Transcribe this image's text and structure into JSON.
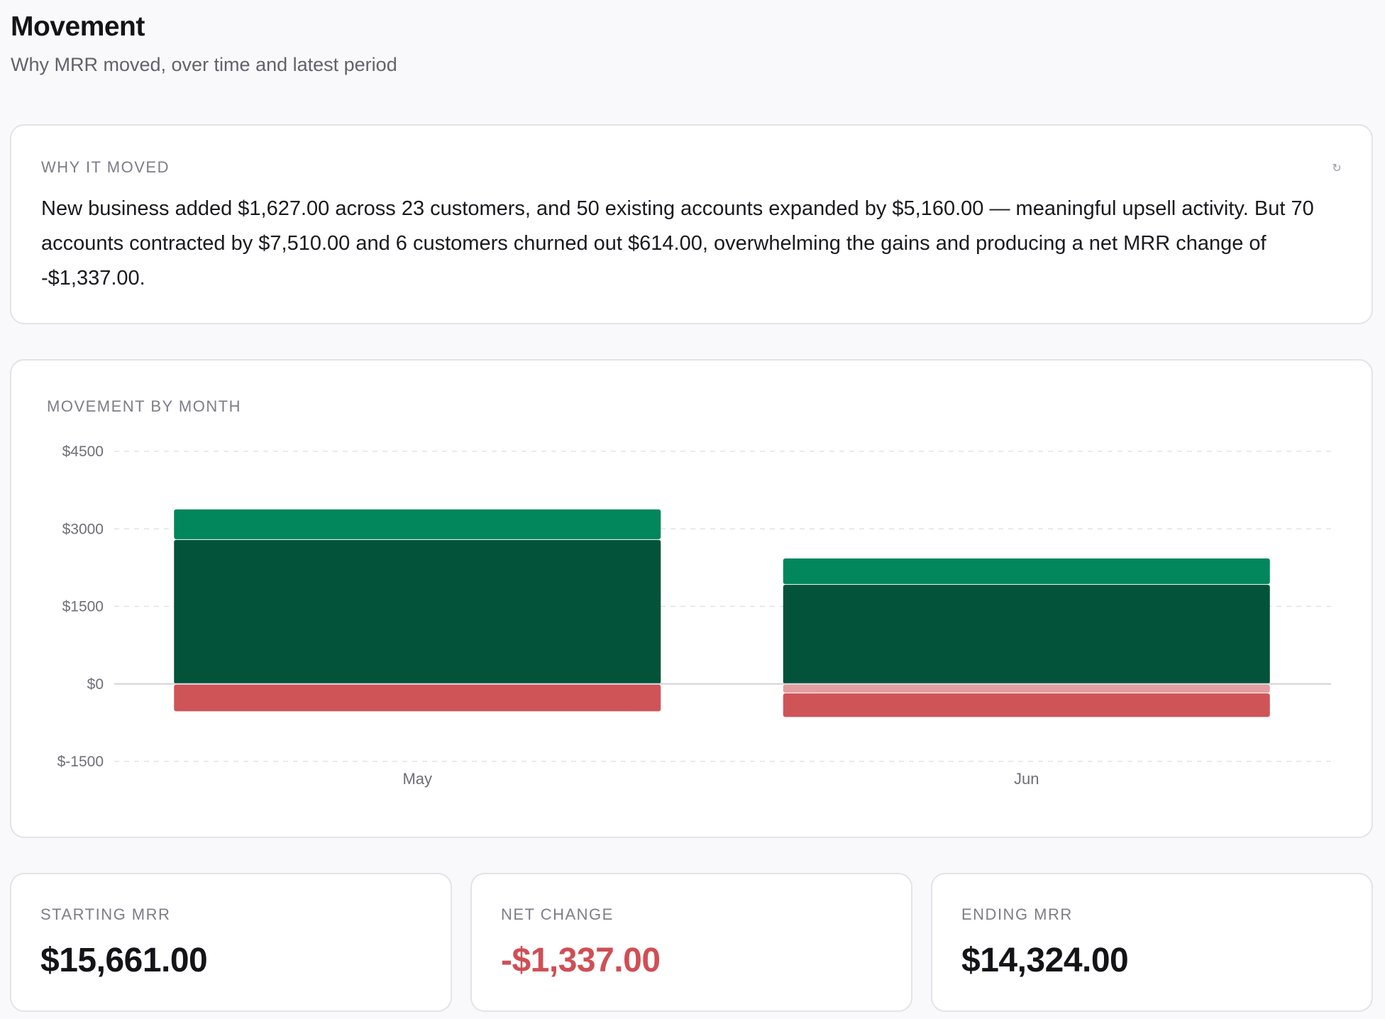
{
  "header": {
    "title": "Movement",
    "subtitle": "Why MRR moved, over time and latest period"
  },
  "why_card": {
    "label": "WHY IT MOVED",
    "refresh_icon": "refresh-icon",
    "text": "New business added $1,627.00 across 23 customers, and 50 existing accounts expanded by $5,160.00 — meaningful upsell activity. But 70 accounts contracted by $7,510.00 and 6 customers churned out $614.00, overwhelming the gains and producing a net MRR change of -$1,337.00."
  },
  "chart_card": {
    "label": "MOVEMENT BY MONTH"
  },
  "chart_data": {
    "type": "bar",
    "stacked": true,
    "categories": [
      "May",
      "Jun"
    ],
    "y_ticks": [
      4500,
      3000,
      1500,
      0,
      -1500
    ],
    "y_tick_labels": [
      "$4500",
      "$3000",
      "$1500",
      "$0",
      "$-1500"
    ],
    "ylim": [
      -1500,
      4500
    ],
    "grid": true,
    "legend": "none",
    "series": [
      {
        "values": [
          2800,
          1930
        ],
        "color": "#03533a"
      },
      {
        "values": [
          590,
          510
        ],
        "color": "#02865c"
      },
      {
        "values": [
          0,
          -170
        ],
        "color": "#e39ea1"
      },
      {
        "values": [
          -530,
          -470
        ],
        "color": "#cf5458"
      }
    ]
  },
  "kpis": [
    {
      "label": "STARTING MRR",
      "value": "$15,661.00",
      "tone": "neutral"
    },
    {
      "label": "NET CHANGE",
      "value": "-$1,337.00",
      "tone": "negative"
    },
    {
      "label": "ENDING MRR",
      "value": "$14,324.00",
      "tone": "neutral"
    }
  ]
}
